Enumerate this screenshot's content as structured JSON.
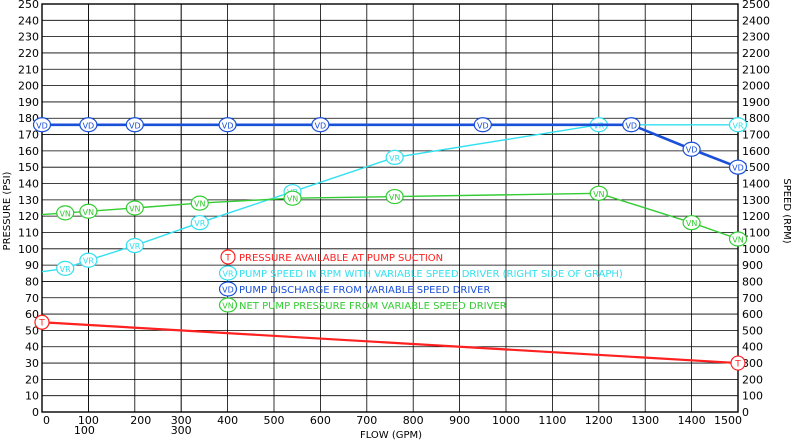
{
  "chart_data": {
    "type": "line",
    "xlabel": "FLOW (GPM)",
    "ylabel": "PRESSURE (PSI)",
    "y2label": "SPEED (RPM)",
    "xlim": [
      0,
      1500
    ],
    "ylim": [
      0,
      250
    ],
    "y2lim": [
      0,
      2500
    ],
    "grid": true,
    "x_ticks": [
      0,
      100,
      200,
      300,
      400,
      500,
      600,
      700,
      800,
      900,
      1000,
      1100,
      1200,
      1300,
      1400,
      1500
    ],
    "x_minor_lines": [
      100,
      300
    ],
    "y_ticks": [
      0,
      10,
      20,
      30,
      40,
      50,
      60,
      70,
      80,
      90,
      100,
      110,
      120,
      130,
      140,
      150,
      160,
      170,
      180,
      190,
      200,
      210,
      220,
      230,
      240,
      250
    ],
    "y2_ticks": [
      0,
      100,
      200,
      300,
      400,
      500,
      600,
      700,
      800,
      900,
      1000,
      1100,
      1200,
      1300,
      1400,
      1500,
      1600,
      1700,
      1800,
      1900,
      2000,
      2100,
      2200,
      2300,
      2400,
      2500
    ],
    "series": [
      {
        "marker": "T",
        "name": "PRESSURE AVAILABLE AT PUMP SUCTION",
        "color": "#ff2020",
        "axis": "left",
        "points": [
          [
            0,
            55
          ],
          [
            1500,
            30
          ]
        ],
        "marked": [
          0,
          1
        ]
      },
      {
        "marker": "VR",
        "name": "PUMP SPEED IN RPM WITH VARIABLE SPEED DRIVER (RIGHT SIDE OF GRAPH)",
        "color": "#33e0f0",
        "axis": "right",
        "points": [
          [
            0,
            860
          ],
          [
            50,
            880
          ],
          [
            100,
            930
          ],
          [
            200,
            1020
          ],
          [
            340,
            1160
          ],
          [
            540,
            1350
          ],
          [
            760,
            1560
          ],
          [
            1200,
            1760
          ],
          [
            1500,
            1760
          ]
        ],
        "marked": [
          1,
          2,
          3,
          4,
          5,
          6,
          7,
          8
        ]
      },
      {
        "marker": "VD",
        "name": "PUMP DISCHARGE FROM VARIABLE SPEED DRIVER",
        "color": "#1a4fd8",
        "axis": "left",
        "points": [
          [
            0,
            176
          ],
          [
            100,
            176
          ],
          [
            200,
            176
          ],
          [
            400,
            176
          ],
          [
            600,
            176
          ],
          [
            950,
            176
          ],
          [
            1270,
            176
          ],
          [
            1400,
            161
          ],
          [
            1500,
            150
          ]
        ],
        "marked": [
          0,
          1,
          2,
          3,
          4,
          5,
          6,
          7,
          8
        ]
      },
      {
        "marker": "VN",
        "name": "NET PUMP PRESSURE FROM VARIABLE SPEED DRIVER",
        "color": "#33cc33",
        "axis": "left",
        "points": [
          [
            0,
            121
          ],
          [
            50,
            122
          ],
          [
            100,
            123
          ],
          [
            200,
            125
          ],
          [
            340,
            128
          ],
          [
            540,
            131
          ],
          [
            760,
            132
          ],
          [
            1200,
            134
          ],
          [
            1400,
            116
          ],
          [
            1500,
            106
          ]
        ],
        "marked": [
          1,
          2,
          3,
          4,
          5,
          6,
          7,
          8,
          9
        ]
      }
    ]
  }
}
